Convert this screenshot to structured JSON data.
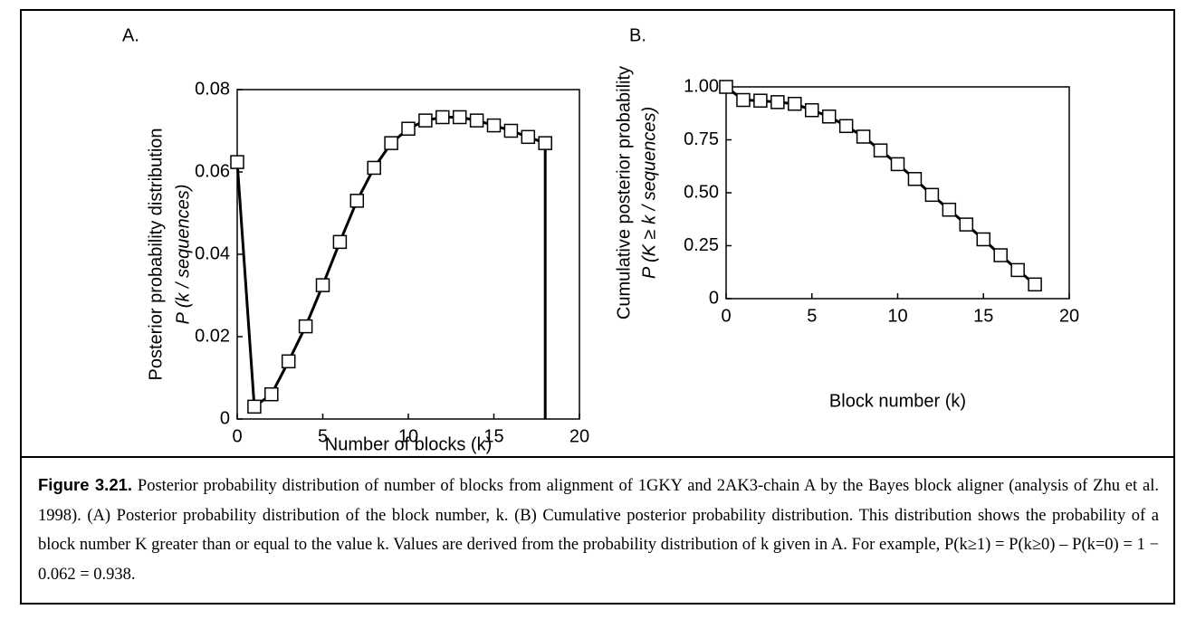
{
  "chart_data": [
    {
      "type": "line",
      "panel_label": "A.",
      "ylabel": [
        "Posterior probability distribution",
        "P (k / sequences)"
      ],
      "xlabel": "Number of blocks (k)",
      "x": [
        0,
        1,
        2,
        3,
        4,
        5,
        6,
        7,
        8,
        9,
        10,
        11,
        12,
        13,
        14,
        15,
        16,
        17,
        18
      ],
      "values": [
        0.0624,
        0.003,
        0.006,
        0.014,
        0.0225,
        0.0325,
        0.043,
        0.053,
        0.061,
        0.067,
        0.0705,
        0.0725,
        0.0733,
        0.0733,
        0.0725,
        0.0713,
        0.07,
        0.0685,
        0.067
      ],
      "xlim": [
        0,
        20
      ],
      "xticks": [
        0,
        5,
        10,
        15,
        20
      ],
      "ylim": [
        0,
        0.08
      ],
      "yticks": [
        0,
        0.02,
        0.04,
        0.06,
        0.08
      ],
      "color": "#000000"
    },
    {
      "type": "line",
      "panel_label": "B.",
      "ylabel": [
        "Cumulative posterior probability",
        "P (K ≥ k / sequences)"
      ],
      "xlabel": "Block number (k)",
      "x": [
        0,
        1,
        2,
        3,
        4,
        5,
        6,
        7,
        8,
        9,
        10,
        11,
        12,
        13,
        14,
        15,
        16,
        17,
        18
      ],
      "values": [
        1.0,
        0.938,
        0.935,
        0.928,
        0.92,
        0.89,
        0.86,
        0.815,
        0.765,
        0.7,
        0.635,
        0.565,
        0.49,
        0.42,
        0.35,
        0.28,
        0.205,
        0.135,
        0.067
      ],
      "xlim": [
        0,
        20
      ],
      "xticks": [
        0,
        5,
        10,
        15,
        20
      ],
      "ylim": [
        0,
        1
      ],
      "yticks": [
        0,
        {
          "value": 0.25,
          "label": "0.25"
        },
        {
          "value": 0.5,
          "label": "0.50"
        },
        {
          "value": 0.75,
          "label": "0.75"
        },
        {
          "value": 1,
          "label": "1.00"
        }
      ],
      "color": "#000000"
    }
  ],
  "caption": {
    "label": "Figure 3.21.",
    "text": "Posterior probability distribution of number of blocks from alignment of 1GKY and 2AK3-chain A by the Bayes block aligner (analysis of Zhu et al. 1998). (A) Posterior probability distribution of the block number, k. (B) Cumulative posterior probability distribution. This distribution shows the probability of a block number K greater than or equal to the value k. Values are derived from the probability distribution of k given in A. For example, P(k≥1) = P(k≥0) – P(k=0) = 1 − 0.062 = 0.938."
  }
}
